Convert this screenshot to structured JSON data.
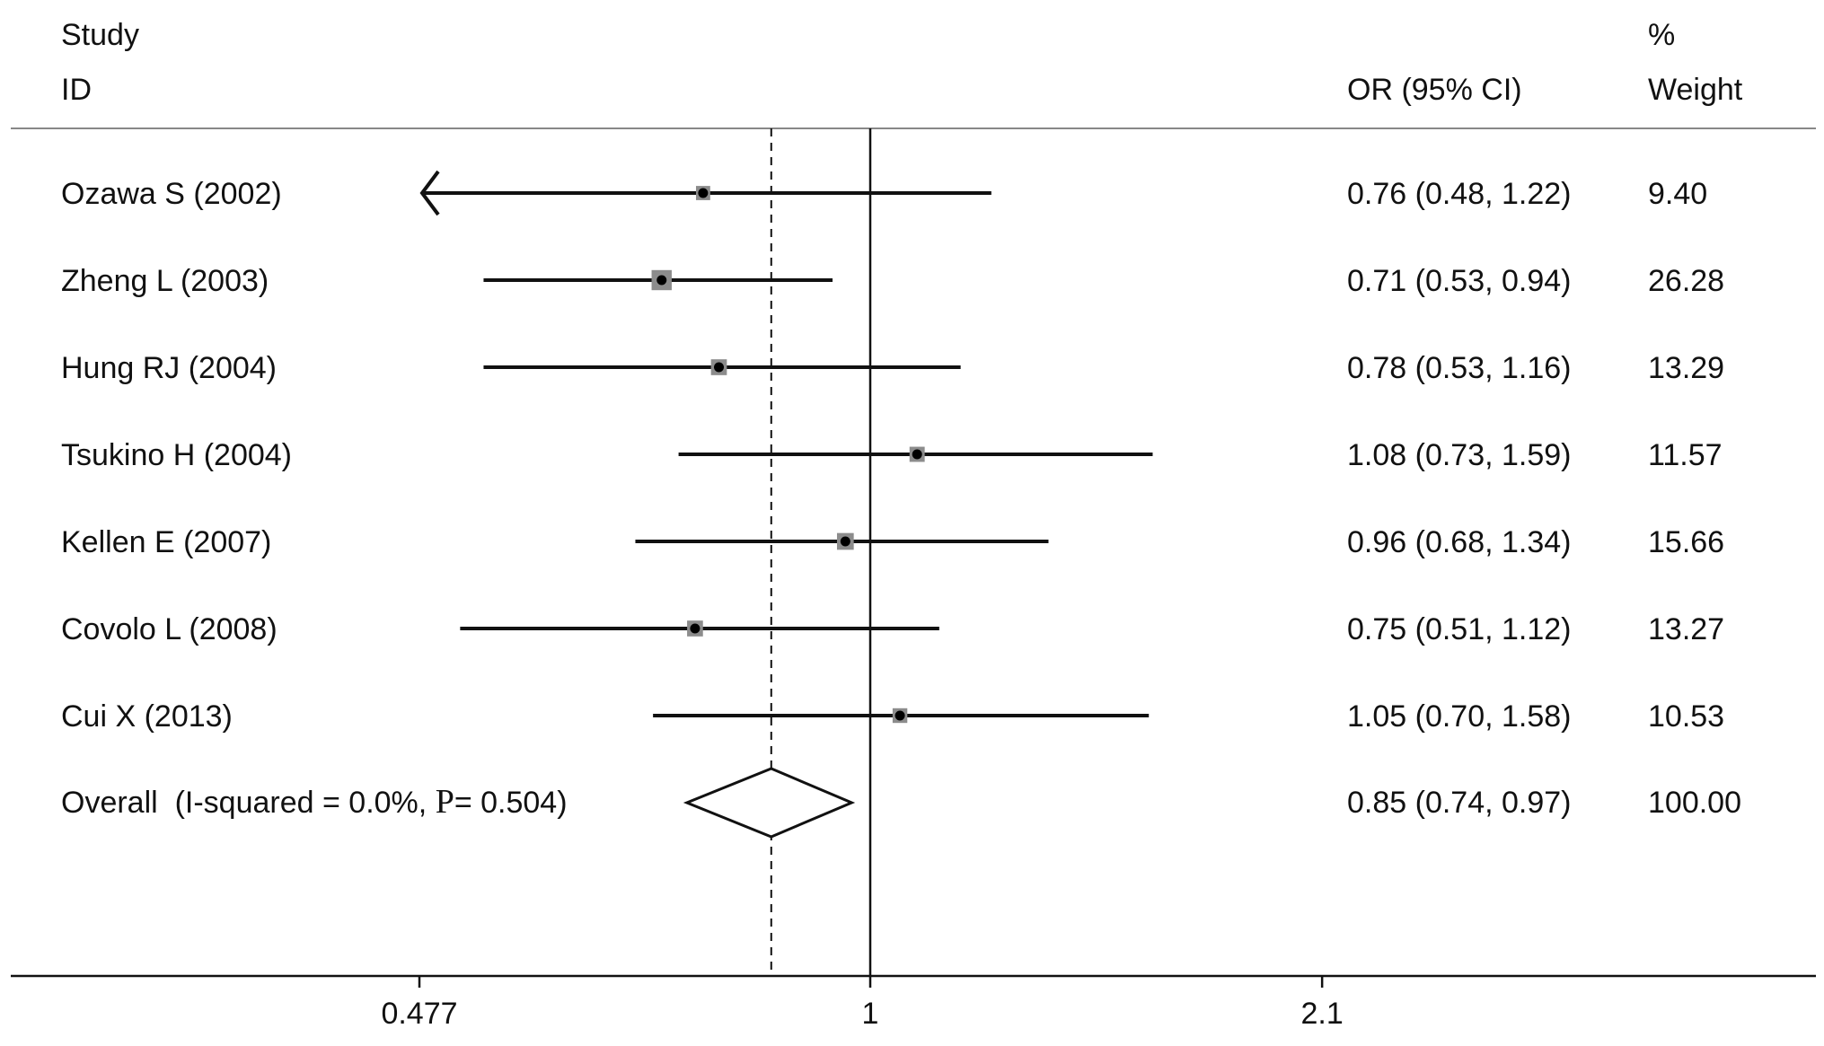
{
  "chart_data": {
    "type": "forest",
    "headers": {
      "study_line1": "Study",
      "study_line2": "ID",
      "or": "OR (95% CI)",
      "weight_line1": "%",
      "weight_line2": "Weight"
    },
    "x_scale": "log",
    "x_ticks": [
      {
        "value": 0.477,
        "label": "0.477"
      },
      {
        "value": 1,
        "label": "1"
      },
      {
        "value": 2.1,
        "label": "2.1"
      }
    ],
    "reference_line": 1,
    "studies": [
      {
        "label": "Ozawa S (2002)",
        "or": 0.76,
        "lo": 0.48,
        "hi": 1.22,
        "weight": 9.4,
        "text": "0.76 (0.48, 1.22)",
        "weight_text": "9.40",
        "truncated_low": true
      },
      {
        "label": "Zheng L (2003)",
        "or": 0.71,
        "lo": 0.53,
        "hi": 0.94,
        "weight": 26.28,
        "text": "0.71 (0.53, 0.94)",
        "weight_text": "26.28"
      },
      {
        "label": "Hung RJ (2004)",
        "or": 0.78,
        "lo": 0.53,
        "hi": 1.16,
        "weight": 13.29,
        "text": "0.78 (0.53, 1.16)",
        "weight_text": "13.29"
      },
      {
        "label": "Tsukino H (2004)",
        "or": 1.08,
        "lo": 0.73,
        "hi": 1.59,
        "weight": 11.57,
        "text": "1.08 (0.73, 1.59)",
        "weight_text": "11.57"
      },
      {
        "label": "Kellen E (2007)",
        "or": 0.96,
        "lo": 0.68,
        "hi": 1.34,
        "weight": 15.66,
        "text": "0.96 (0.68, 1.34)",
        "weight_text": "15.66"
      },
      {
        "label": "Covolo L (2008)",
        "or": 0.75,
        "lo": 0.51,
        "hi": 1.12,
        "weight": 13.27,
        "text": "0.75 (0.51, 1.12)",
        "weight_text": "13.27"
      },
      {
        "label": "Cui X (2013)",
        "or": 1.05,
        "lo": 0.7,
        "hi": 1.58,
        "weight": 10.53,
        "text": "1.05 (0.70, 1.58)",
        "weight_text": "10.53"
      }
    ],
    "overall": {
      "label_prefix": "Overall  (I-squared = 0.0%, ",
      "label_p": "P",
      "label_suffix": "= 0.504)",
      "or": 0.85,
      "lo": 0.74,
      "hi": 0.97,
      "text": "0.85 (0.74, 0.97)",
      "weight_text": "100.00"
    }
  }
}
